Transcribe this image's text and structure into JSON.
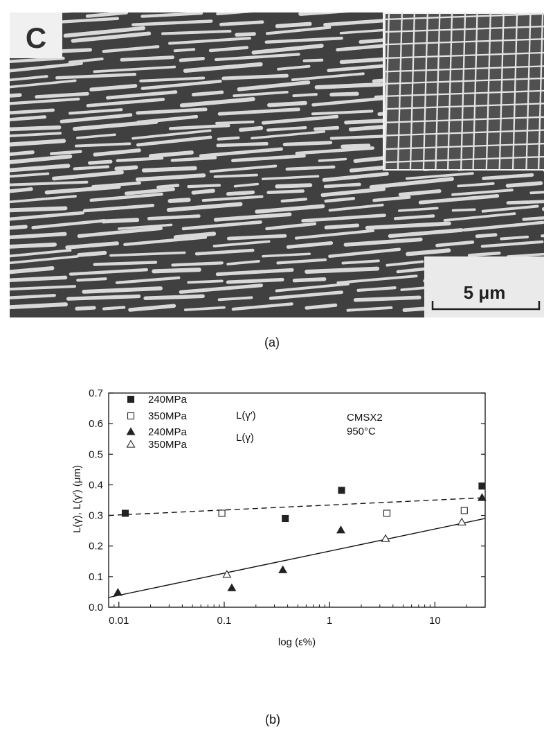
{
  "micrograph": {
    "panel_label": "C",
    "scale_bar": "5 μm"
  },
  "captions": {
    "a": "(a)",
    "b": "(b)"
  },
  "chart_data": {
    "type": "scatter",
    "xscale": "log",
    "xlabel": "log (ε%)",
    "ylabel": "L(γ), L(γ′) (μm)",
    "xlim": [
      0.008,
      30
    ],
    "ylim": [
      0.0,
      0.7
    ],
    "xticks": [
      "0.01",
      "0.1",
      "1",
      "10"
    ],
    "yticks": [
      "0.0",
      "0.1",
      "0.2",
      "0.3",
      "0.4",
      "0.5",
      "0.6",
      "0.7"
    ],
    "annotation": [
      "CMSX2",
      "950°C"
    ],
    "legend_group_labels": [
      "L(γ′)",
      "L(γ)"
    ],
    "series": [
      {
        "name": "240MPa",
        "group": "L(γ′)",
        "marker": "filled-square",
        "x": [
          0.0115,
          0.38,
          1.3,
          28
        ],
        "y": [
          0.307,
          0.29,
          0.382,
          0.396
        ]
      },
      {
        "name": "350MPa",
        "group": "L(γ′)",
        "marker": "open-square",
        "x": [
          0.095,
          3.5,
          19
        ],
        "y": [
          0.307,
          0.307,
          0.316
        ]
      },
      {
        "name": "240MPa",
        "group": "L(γ)",
        "marker": "filled-triangle",
        "x": [
          0.0098,
          0.118,
          0.36,
          1.28,
          28
        ],
        "y": [
          0.048,
          0.063,
          0.122,
          0.252,
          0.358
        ]
      },
      {
        "name": "350MPa",
        "group": "L(γ)",
        "marker": "open-triangle",
        "x": [
          0.106,
          3.4,
          18
        ],
        "y": [
          0.107,
          0.224,
          0.278
        ]
      }
    ],
    "fit_lines": [
      {
        "name": "L(γ′) fit",
        "style": "dashed",
        "x": [
          0.008,
          30
        ],
        "y": [
          0.3,
          0.358
        ]
      },
      {
        "name": "L(γ) fit",
        "style": "solid",
        "x": [
          0.008,
          30
        ],
        "y": [
          0.032,
          0.29
        ]
      }
    ]
  }
}
